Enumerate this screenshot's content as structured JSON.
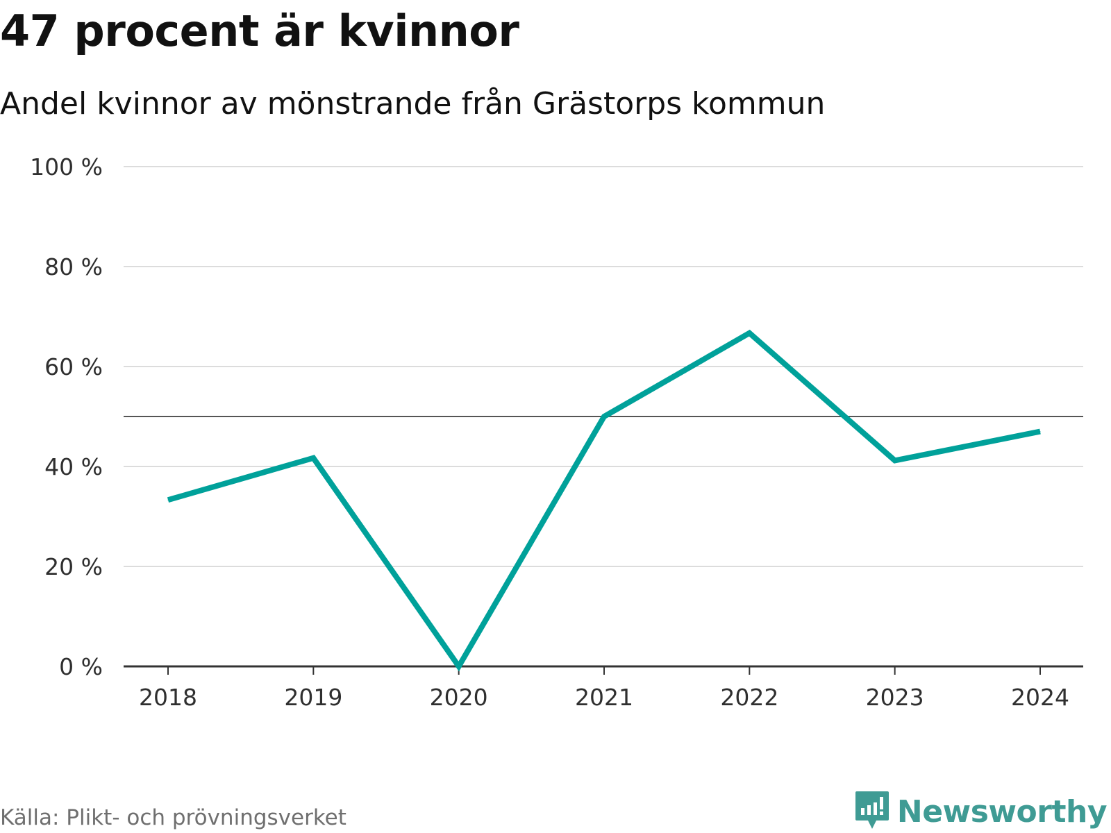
{
  "title": "47 procent är kvinnor",
  "subtitle": "Andel kvinnor av mönstrande från Grästorps kommun",
  "source": "Källa: Plikt- och prövningsverket",
  "brand": {
    "name": "Newsworthy",
    "icon": "newsworthy-logo-icon",
    "color": "#3f9b94"
  },
  "chart_data": {
    "type": "line",
    "title": "47 procent är kvinnor",
    "subtitle": "Andel kvinnor av mönstrande från Grästorps kommun",
    "xlabel": "",
    "ylabel": "",
    "categories": [
      "2018",
      "2019",
      "2020",
      "2021",
      "2022",
      "2023",
      "2024"
    ],
    "series": [
      {
        "name": "Andel kvinnor",
        "values": [
          33.3,
          41.7,
          0,
          50,
          66.7,
          41.2,
          47
        ],
        "color": "#00a19a"
      }
    ],
    "reference_line": {
      "value": 50,
      "color": "#555555"
    },
    "ylim": [
      0,
      100
    ],
    "yticks": [
      0,
      20,
      40,
      60,
      80,
      100
    ],
    "ytick_labels": [
      "0 %",
      "20 %",
      "40 %",
      "60 %",
      "80 %",
      "100 %"
    ],
    "grid": true
  }
}
